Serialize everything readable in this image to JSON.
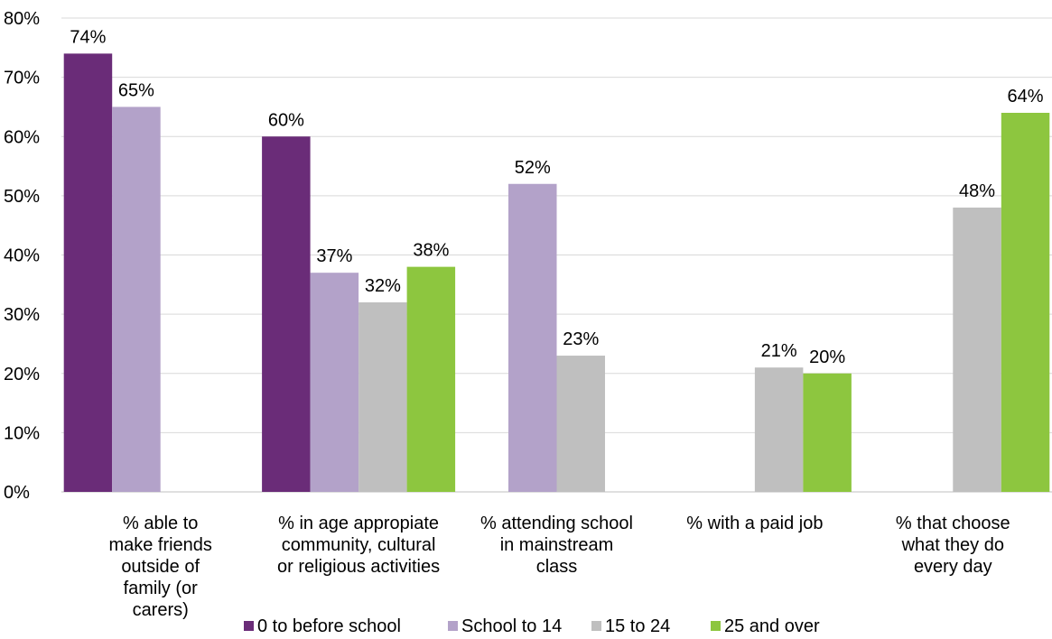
{
  "chart_data": {
    "type": "bar",
    "categories": [
      "% able to make friends outside of family (or carers)",
      "% in age appropiate community, cultural or religious activities",
      "% attending school in mainstream class",
      "% with a paid job",
      "% that choose what they do every day"
    ],
    "category_lines": [
      [
        "% able to",
        "make friends",
        "outside of",
        "family (or",
        "carers)"
      ],
      [
        "% in age appropiate",
        "community, cultural",
        "or religious activities"
      ],
      [
        "% attending school",
        "in mainstream",
        "class"
      ],
      [
        "% with a paid job"
      ],
      [
        "% that choose",
        "what they do",
        "every day"
      ]
    ],
    "series": [
      {
        "name": "0 to before school",
        "color": "#6a2c78",
        "values": [
          74,
          60,
          null,
          null,
          null
        ],
        "labels": [
          "74%",
          "60%",
          null,
          null,
          null
        ]
      },
      {
        "name": "School to 14",
        "color": "#b3a2c9",
        "values": [
          65,
          37,
          52,
          null,
          null
        ],
        "labels": [
          "65%",
          "37%",
          "52%",
          null,
          null
        ]
      },
      {
        "name": "15 to 24",
        "color": "#bfbfbf",
        "values": [
          null,
          32,
          23,
          21,
          48
        ],
        "labels": [
          null,
          "32%",
          "23%",
          "21%",
          "48%"
        ]
      },
      {
        "name": "25 and over",
        "color": "#8dc63f",
        "values": [
          null,
          38,
          null,
          20,
          64
        ],
        "labels": [
          null,
          "38%",
          null,
          "20%",
          "64%"
        ]
      }
    ],
    "ylim": [
      0,
      80
    ],
    "yticks": [
      0,
      10,
      20,
      30,
      40,
      50,
      60,
      70,
      80
    ],
    "ytick_labels": [
      "0%",
      "10%",
      "20%",
      "30%",
      "40%",
      "50%",
      "60%",
      "70%",
      "80%"
    ],
    "grid": true,
    "legend_position": "bottom",
    "xlabel": "",
    "ylabel": "",
    "title": ""
  }
}
